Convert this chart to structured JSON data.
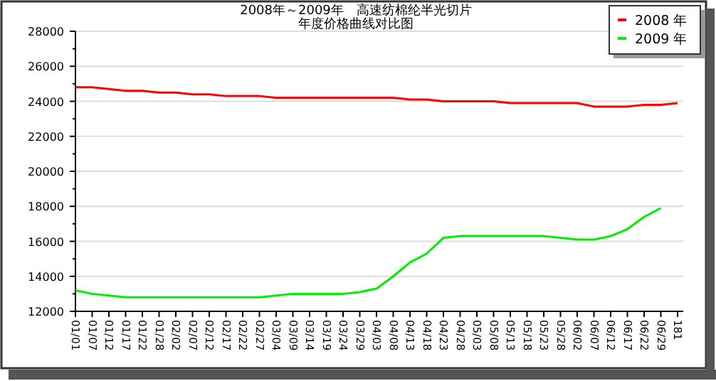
{
  "chart_data": {
    "type": "line",
    "title": "2008年～2009年　高速纺棉纶半光切片",
    "subtitle": "年度价格曲线对比图",
    "categories": [
      "01/01",
      "01/07",
      "01/12",
      "01/17",
      "01/22",
      "01/28",
      "02/02",
      "02/07",
      "02/12",
      "02/17",
      "02/22",
      "02/27",
      "03/04",
      "03/09",
      "03/14",
      "03/19",
      "03/24",
      "03/29",
      "04/03",
      "04/08",
      "04/13",
      "04/18",
      "04/23",
      "04/28",
      "05/03",
      "05/08",
      "05/13",
      "05/18",
      "05/23",
      "05/28",
      "06/02",
      "06/07",
      "06/12",
      "06/17",
      "06/22",
      "06/29",
      "181"
    ],
    "series": [
      {
        "name": "2008 年",
        "color": "#ff0000",
        "values": [
          24800,
          24800,
          24700,
          24600,
          24600,
          24500,
          24500,
          24400,
          24400,
          24300,
          24300,
          24300,
          24200,
          24200,
          24200,
          24200,
          24200,
          24200,
          24200,
          24200,
          24100,
          24100,
          24000,
          24000,
          24000,
          24000,
          23900,
          23900,
          23900,
          23900,
          23900,
          23700,
          23700,
          23700,
          23800,
          23800,
          23900
        ]
      },
      {
        "name": "2009 年",
        "color": "#00ee00",
        "values": [
          13200,
          13000,
          12900,
          12800,
          12800,
          12800,
          12800,
          12800,
          12800,
          12800,
          12800,
          12800,
          12900,
          13000,
          13000,
          13000,
          13000,
          13100,
          13300,
          14000,
          14800,
          15300,
          16200,
          16300,
          16300,
          16300,
          16300,
          16300,
          16300,
          16200,
          16100,
          16100,
          16300,
          16700,
          17400,
          17900,
          null
        ]
      }
    ],
    "ylim": [
      12000,
      28000
    ],
    "yticks": [
      12000,
      14000,
      16000,
      18000,
      20000,
      22000,
      24000,
      26000,
      28000
    ],
    "grid": "y",
    "legend": "top right"
  }
}
